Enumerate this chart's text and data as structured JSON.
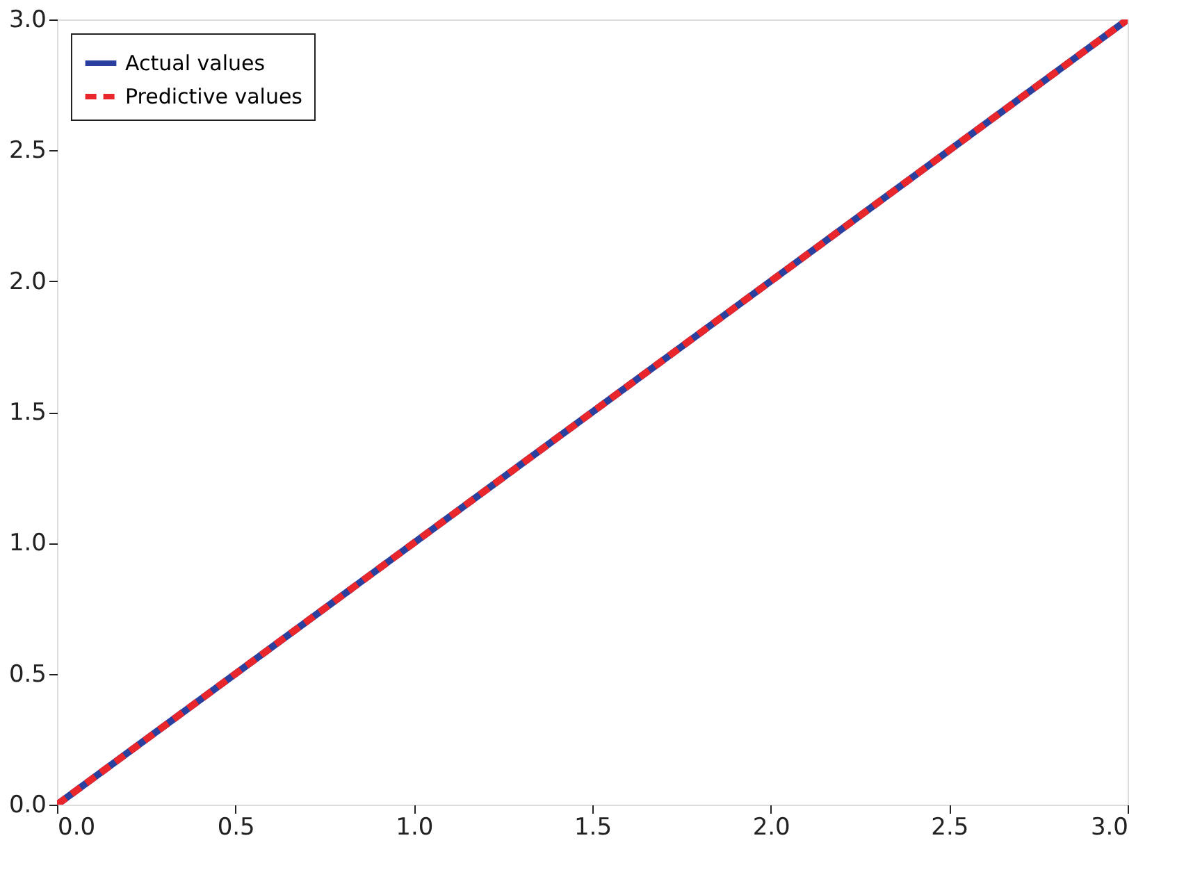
{
  "chart_data": {
    "type": "line",
    "x": [
      0,
      3
    ],
    "series": [
      {
        "name": "Actual values",
        "color": "#2b3f9e",
        "values": [
          0,
          3
        ],
        "line_style": "solid"
      },
      {
        "name": "Predictive values",
        "color": "#e8262b",
        "values": [
          0,
          3
        ],
        "line_style": "dashed"
      }
    ],
    "xlim": [
      0,
      3
    ],
    "ylim": [
      0,
      3
    ],
    "xticks": [
      {
        "value": 0,
        "label": "0.0"
      },
      {
        "value": 0.5,
        "label": "0.5"
      },
      {
        "value": 1,
        "label": "1.0"
      },
      {
        "value": 1.5,
        "label": "1.5"
      },
      {
        "value": 2,
        "label": "2.0"
      },
      {
        "value": 2.5,
        "label": "2.5"
      },
      {
        "value": 3,
        "label": "3.0"
      }
    ],
    "yticks": [
      {
        "value": 0,
        "label": "0.0"
      },
      {
        "value": 0.5,
        "label": "0.5"
      },
      {
        "value": 1,
        "label": "1.0"
      },
      {
        "value": 1.5,
        "label": "1.5"
      },
      {
        "value": 2,
        "label": "2.0"
      },
      {
        "value": 2.5,
        "label": "2.5"
      },
      {
        "value": 3,
        "label": "3.0"
      }
    ],
    "legend": "top left",
    "grid": false,
    "marker": "none"
  }
}
